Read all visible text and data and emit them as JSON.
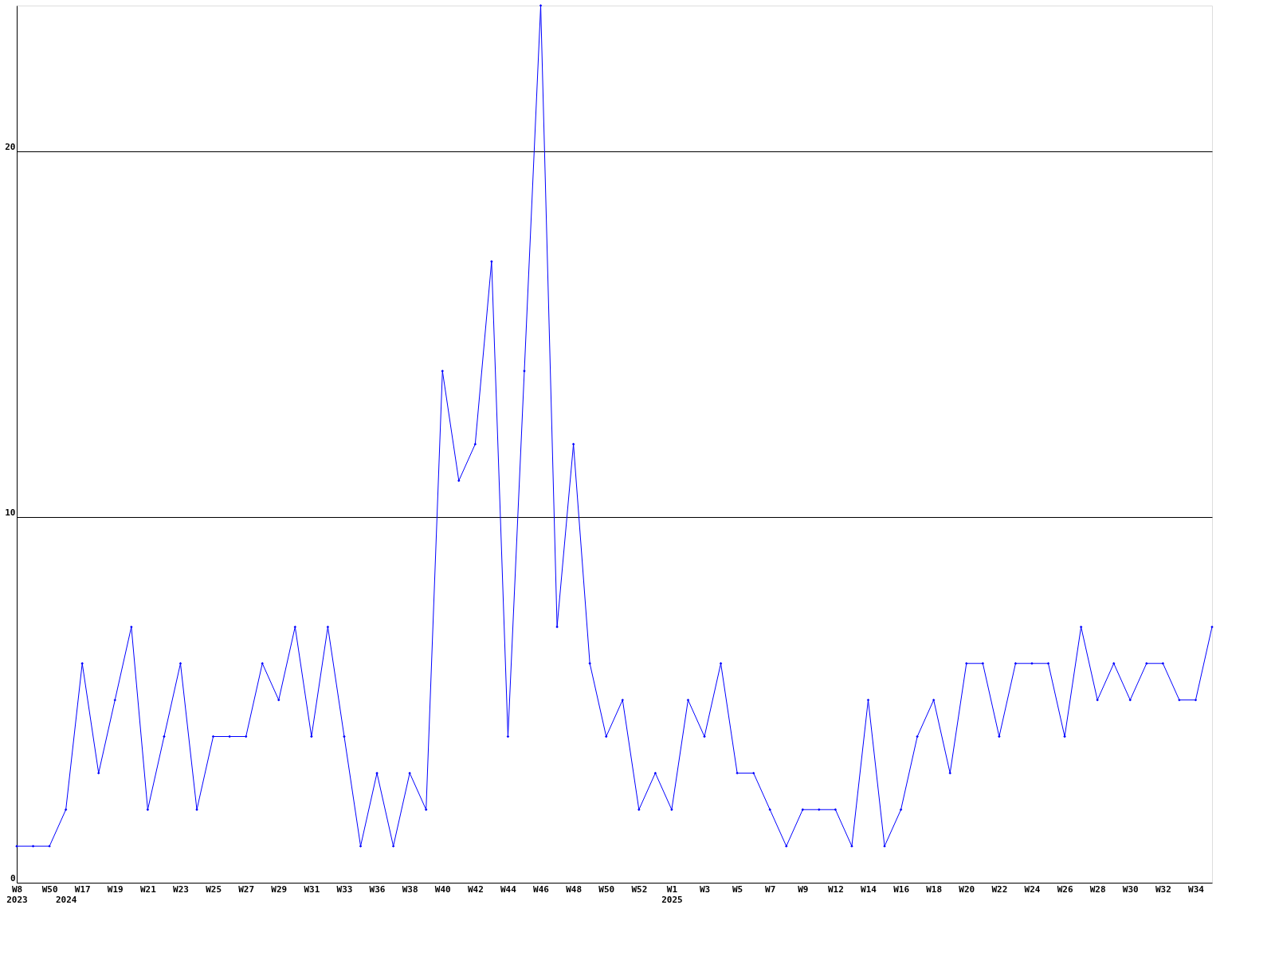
{
  "chart_data": {
    "type": "line",
    "categories": [
      "W8\n2023",
      null,
      "W50",
      "\n2024",
      "W17",
      null,
      "W19",
      null,
      "W21",
      null,
      "W23",
      null,
      "W25",
      null,
      "W27",
      null,
      "W29",
      null,
      "W31",
      null,
      "W33",
      null,
      "W36",
      null,
      "W38",
      null,
      "W40",
      null,
      "W42",
      null,
      "W44",
      null,
      "W46",
      null,
      "W48",
      null,
      "W50",
      null,
      "W52",
      null,
      "W1\n2025",
      null,
      "W3",
      null,
      "W5",
      null,
      "W7",
      null,
      "W9",
      null,
      "W12",
      null,
      "W14",
      null,
      "W16",
      null,
      "W18",
      null,
      "W20",
      null,
      "W22",
      null,
      "W24",
      null,
      "W26",
      null,
      "W28",
      null,
      "W30",
      null,
      "W32",
      null,
      "W34",
      null
    ],
    "series": [
      {
        "color": "#0000ff",
        "values": [
          1,
          1,
          1,
          2,
          6,
          3,
          5,
          7,
          2,
          4,
          6,
          2,
          4,
          4,
          4,
          6,
          5,
          7,
          4,
          7,
          4,
          1,
          3,
          1,
          3,
          2,
          14,
          11,
          12,
          17,
          4,
          14,
          24,
          7,
          12,
          6,
          4,
          5,
          2,
          3,
          2,
          5,
          4,
          6,
          3,
          3,
          2,
          1,
          2,
          2,
          2,
          1,
          5,
          1,
          2,
          4,
          5,
          3,
          6,
          6,
          4,
          6,
          6,
          6,
          4,
          7,
          5,
          6,
          5,
          6,
          6,
          5,
          5,
          7
        ]
      }
    ],
    "ylim": [
      0,
      24
    ],
    "yticks": [
      0,
      10,
      20
    ],
    "grid": "y",
    "marker": "diamond",
    "line_style": "solid"
  }
}
